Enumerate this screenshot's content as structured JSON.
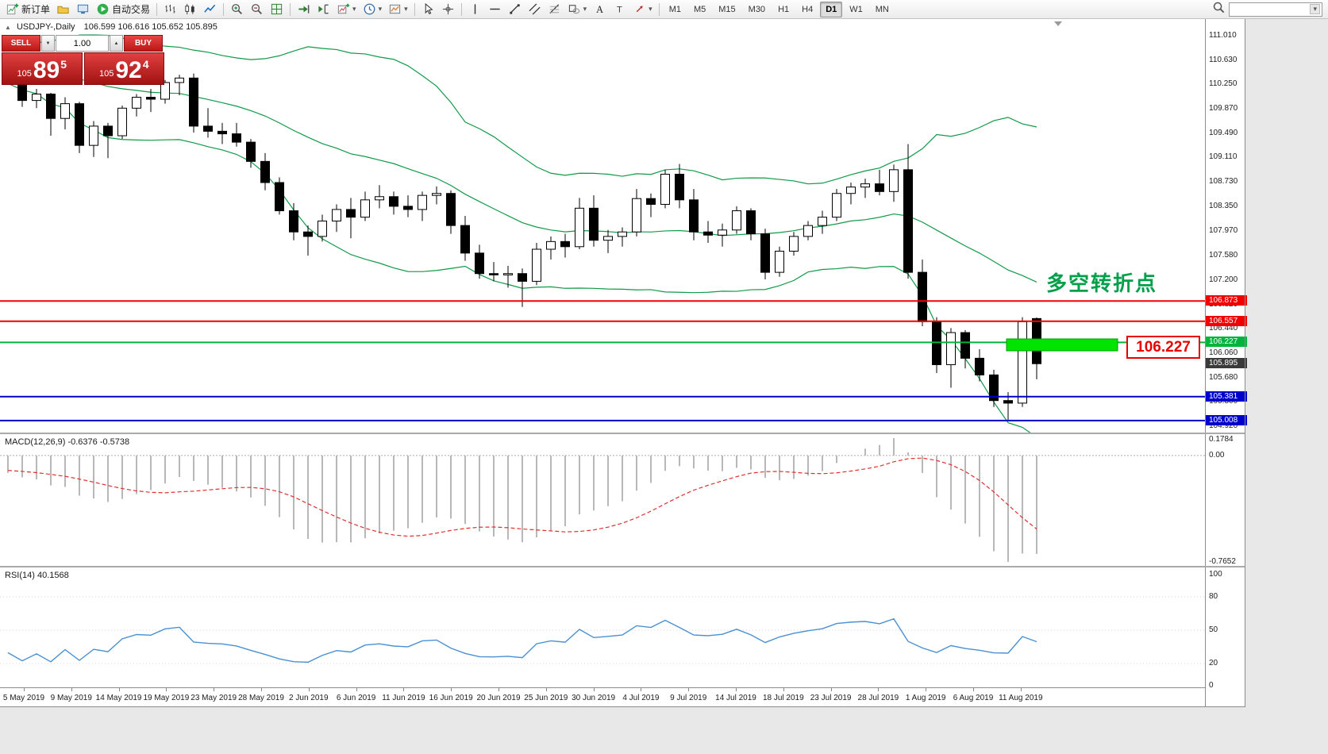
{
  "toolbar": {
    "items": [
      {
        "type": "button",
        "name": "new-order",
        "icon": "new-order-icon",
        "label": "新订单"
      },
      {
        "type": "button",
        "name": "profiles",
        "icon": "profile-icon"
      },
      {
        "type": "button",
        "name": "market-watch",
        "icon": "monitor-icon"
      },
      {
        "type": "button",
        "name": "auto-trading",
        "icon": "play-icon",
        "label": "自动交易"
      },
      {
        "type": "separator"
      },
      {
        "type": "button",
        "name": "bar-chart-mode",
        "icon": "bar-chart-icon"
      },
      {
        "type": "button",
        "name": "candlestick-mode",
        "icon": "candlestick-icon"
      },
      {
        "type": "button",
        "name": "line-chart-mode",
        "icon": "line-chart-icon"
      },
      {
        "type": "separator"
      },
      {
        "type": "button",
        "name": "zoom-in",
        "icon": "zoom-in-icon"
      },
      {
        "type": "button",
        "name": "zoom-out",
        "icon": "zoom-out-icon"
      },
      {
        "type": "button",
        "name": "tile-windows",
        "icon": "tile-icon"
      },
      {
        "type": "separator"
      },
      {
        "type": "button",
        "name": "auto-scroll",
        "icon": "auto-scroll-icon"
      },
      {
        "type": "button",
        "name": "chart-shift",
        "icon": "chart-shift-icon"
      },
      {
        "type": "button",
        "name": "new-chart",
        "icon": "new-chart-icon",
        "caret": true
      },
      {
        "type": "button",
        "name": "periods",
        "icon": "clock-icon",
        "caret": true
      },
      {
        "type": "button",
        "name": "templates",
        "icon": "template-icon",
        "caret": true
      },
      {
        "type": "separator"
      },
      {
        "type": "button",
        "name": "cursor-tool",
        "icon": "cursor-icon"
      },
      {
        "type": "button",
        "name": "crosshair-tool",
        "icon": "crosshair-icon"
      },
      {
        "type": "separator"
      },
      {
        "type": "button",
        "name": "vertical-line-tool",
        "icon": "vline-icon"
      },
      {
        "type": "button",
        "name": "horizontal-line-tool",
        "icon": "hline-icon"
      },
      {
        "type": "button",
        "name": "trendline-tool",
        "icon": "trendline-icon"
      },
      {
        "type": "button",
        "name": "channel-tool",
        "icon": "channel-icon"
      },
      {
        "type": "button",
        "name": "fibonacci-tool",
        "icon": "fibo-icon"
      },
      {
        "type": "button",
        "name": "shapes-tool",
        "icon": "shapes-icon",
        "caret": true
      },
      {
        "type": "button",
        "name": "text-tool",
        "icon": "text-icon"
      },
      {
        "type": "button",
        "name": "label-tool",
        "icon": "label-icon"
      },
      {
        "type": "button",
        "name": "arrows-tool",
        "icon": "arrow-icon",
        "caret": true
      },
      {
        "type": "separator"
      },
      {
        "type": "timeframe",
        "name": "tf-m1",
        "label": "M1"
      },
      {
        "type": "timeframe",
        "name": "tf-m5",
        "label": "M5"
      },
      {
        "type": "timeframe",
        "name": "tf-m15",
        "label": "M15"
      },
      {
        "type": "timeframe",
        "name": "tf-m30",
        "label": "M30"
      },
      {
        "type": "timeframe",
        "name": "tf-h1",
        "label": "H1"
      },
      {
        "type": "timeframe",
        "name": "tf-h4",
        "label": "H4"
      },
      {
        "type": "timeframe",
        "name": "tf-d1",
        "label": "D1",
        "active": true
      },
      {
        "type": "timeframe",
        "name": "tf-w1",
        "label": "W1"
      },
      {
        "type": "timeframe",
        "name": "tf-mn",
        "label": "MN"
      }
    ]
  },
  "glyphs": {
    "caret_down": "▾",
    "volume_down": "▼",
    "volume_up": "▲",
    "one_click_toggle": "▲"
  },
  "chart": {
    "symbol_label": "USDJPY-,Daily",
    "ohlc_text": "106.599 106.616 105.652 105.895",
    "annotation": "多空转折点",
    "callout_label": "106.227",
    "axis_labels": [
      "111.010",
      "110.630",
      "110.250",
      "109.870",
      "109.490",
      "109.110",
      "108.730",
      "108.350",
      "107.970",
      "107.580",
      "107.200",
      "106.820",
      "106.440",
      "106.060",
      "105.680",
      "105.300",
      "104.920"
    ],
    "hlines": [
      {
        "price": 106.873,
        "label": "106.873",
        "color": "#f00000"
      },
      {
        "price": 106.557,
        "label": "106.557",
        "color": "#f00000"
      },
      {
        "price": 106.227,
        "label": "106.227",
        "color": "#00b43c"
      },
      {
        "price": 105.381,
        "label": "105.381",
        "color": "#0000cc"
      },
      {
        "price": 105.008,
        "label": "105.008",
        "color": "#0000cc"
      }
    ],
    "bid_tag": {
      "price": 105.895,
      "label": "105.895",
      "color": "#3a3a3a"
    },
    "dates": [
      "5 May 2019",
      "9 May 2019",
      "14 May 2019",
      "19 May 2019",
      "23 May 2019",
      "28 May 2019",
      "2 Jun 2019",
      "6 Jun 2019",
      "11 Jun 2019",
      "16 Jun 2019",
      "20 Jun 2019",
      "25 Jun 2019",
      "30 Jun 2019",
      "4 Jul 2019",
      "9 Jul 2019",
      "14 Jul 2019",
      "18 Jul 2019",
      "23 Jul 2019",
      "28 Jul 2019",
      "1 Aug 2019",
      "6 Aug 2019",
      "11 Aug 2019"
    ]
  },
  "trade_panel": {
    "sell_label": "SELL",
    "buy_label": "BUY",
    "volume": "1.00",
    "sell_price": {
      "small": "105",
      "big": "89",
      "sup": "5"
    },
    "buy_price": {
      "small": "105",
      "big": "92",
      "sup": "4"
    }
  },
  "macd_panel": {
    "label": "MACD(12,26,9) -0.6376 -0.5738",
    "axis": {
      "max": "0.1784",
      "zero": "0.00",
      "min": "-0.7652"
    }
  },
  "rsi_panel": {
    "label": "RSI(14) 40.1568",
    "axis": [
      "100",
      "80",
      "50",
      "20",
      "0"
    ],
    "levels": [
      80,
      50,
      20
    ]
  },
  "chart_data": {
    "type": "candlestick",
    "symbol": "USDJPY",
    "timeframe": "Daily",
    "last_candle_ohlc": {
      "open": 106.599,
      "high": 106.616,
      "low": 105.652,
      "close": 105.895
    },
    "price_axis": {
      "min": 104.92,
      "max": 111.01,
      "step": 0.38
    },
    "horizontal_levels": [
      106.873,
      106.557,
      106.227,
      105.381,
      105.008
    ],
    "indicators": [
      "Bollinger Bands(20,2)",
      "MACD(12,26,9)",
      "RSI(14)"
    ],
    "macd_display": {
      "main": -0.6376,
      "signal": -0.5738,
      "range_max": 0.1784,
      "range_min": -0.7652
    },
    "rsi_display": 40.1568,
    "pre_closes": [
      110.85,
      110.9,
      110.82,
      110.75,
      110.8,
      110.72,
      110.65,
      110.7,
      110.6,
      110.55,
      110.6,
      110.52,
      110.48,
      110.55,
      110.45,
      110.5,
      110.42,
      110.46,
      110.38,
      110.44
    ],
    "candles": [
      [
        110.42,
        110.55,
        110.25,
        110.3
      ],
      [
        110.3,
        110.42,
        109.9,
        110.0
      ],
      [
        110.0,
        110.18,
        109.88,
        110.1
      ],
      [
        110.1,
        110.12,
        109.45,
        109.72
      ],
      [
        109.72,
        110.05,
        109.55,
        109.95
      ],
      [
        109.95,
        109.98,
        109.18,
        109.3
      ],
      [
        109.3,
        109.68,
        109.12,
        109.6
      ],
      [
        109.6,
        109.65,
        109.1,
        109.45
      ],
      [
        109.45,
        109.92,
        109.4,
        109.88
      ],
      [
        109.88,
        110.1,
        109.75,
        110.05
      ],
      [
        110.05,
        110.18,
        109.82,
        110.02
      ],
      [
        110.02,
        110.32,
        109.95,
        110.28
      ],
      [
        110.28,
        110.4,
        110.08,
        110.35
      ],
      [
        110.35,
        110.42,
        109.5,
        109.6
      ],
      [
        109.6,
        109.88,
        109.42,
        109.52
      ],
      [
        109.52,
        109.65,
        109.32,
        109.48
      ],
      [
        109.48,
        109.65,
        109.28,
        109.35
      ],
      [
        109.35,
        109.4,
        108.95,
        109.05
      ],
      [
        109.05,
        109.18,
        108.6,
        108.72
      ],
      [
        108.72,
        108.8,
        108.22,
        108.28
      ],
      [
        108.28,
        108.4,
        107.82,
        107.95
      ],
      [
        107.95,
        108.05,
        107.58,
        107.88
      ],
      [
        107.88,
        108.22,
        107.8,
        108.12
      ],
      [
        108.12,
        108.38,
        107.95,
        108.3
      ],
      [
        108.3,
        108.48,
        107.85,
        108.18
      ],
      [
        108.18,
        108.58,
        108.12,
        108.45
      ],
      [
        108.45,
        108.68,
        108.32,
        108.5
      ],
      [
        108.5,
        108.58,
        108.22,
        108.35
      ],
      [
        108.35,
        108.52,
        108.18,
        108.3
      ],
      [
        108.3,
        108.58,
        108.12,
        108.52
      ],
      [
        108.52,
        108.66,
        108.38,
        108.55
      ],
      [
        108.55,
        108.6,
        107.92,
        108.05
      ],
      [
        108.05,
        108.2,
        107.5,
        107.62
      ],
      [
        107.62,
        107.75,
        107.22,
        107.3
      ],
      [
        107.3,
        107.48,
        107.18,
        107.28
      ],
      [
        107.28,
        107.42,
        107.08,
        107.3
      ],
      [
        107.3,
        107.38,
        106.78,
        107.18
      ],
      [
        107.18,
        107.78,
        107.12,
        107.68
      ],
      [
        107.68,
        107.88,
        107.52,
        107.8
      ],
      [
        107.8,
        107.92,
        107.55,
        107.72
      ],
      [
        107.72,
        108.48,
        107.68,
        108.32
      ],
      [
        108.32,
        108.52,
        107.72,
        107.82
      ],
      [
        107.82,
        107.98,
        107.62,
        107.88
      ],
      [
        107.88,
        108.02,
        107.72,
        107.95
      ],
      [
        107.95,
        108.62,
        107.88,
        108.47
      ],
      [
        108.47,
        108.55,
        108.18,
        108.38
      ],
      [
        108.38,
        108.92,
        108.32,
        108.85
      ],
      [
        108.85,
        109.01,
        108.32,
        108.45
      ],
      [
        108.45,
        108.62,
        107.82,
        107.95
      ],
      [
        107.95,
        108.12,
        107.78,
        107.9
      ],
      [
        107.9,
        108.08,
        107.72,
        107.98
      ],
      [
        107.98,
        108.35,
        107.92,
        108.28
      ],
      [
        108.28,
        108.32,
        107.82,
        107.92
      ],
      [
        107.92,
        108.0,
        107.21,
        107.32
      ],
      [
        107.32,
        107.72,
        107.25,
        107.65
      ],
      [
        107.65,
        107.95,
        107.58,
        107.88
      ],
      [
        107.88,
        108.12,
        107.82,
        108.05
      ],
      [
        108.05,
        108.28,
        107.92,
        108.18
      ],
      [
        108.18,
        108.62,
        108.12,
        108.55
      ],
      [
        108.55,
        108.72,
        108.38,
        108.65
      ],
      [
        108.65,
        108.78,
        108.48,
        108.7
      ],
      [
        108.7,
        108.92,
        108.52,
        108.58
      ],
      [
        108.58,
        109.0,
        108.42,
        108.92
      ],
      [
        108.92,
        109.32,
        107.22,
        107.32
      ],
      [
        107.32,
        107.52,
        106.48,
        106.55
      ],
      [
        106.55,
        106.62,
        105.75,
        105.88
      ],
      [
        105.88,
        106.45,
        105.52,
        106.38
      ],
      [
        106.38,
        106.42,
        105.82,
        105.98
      ],
      [
        105.98,
        106.12,
        105.62,
        105.72
      ],
      [
        105.72,
        105.8,
        105.22,
        105.32
      ],
      [
        105.32,
        105.45,
        105.02,
        105.28
      ],
      [
        105.28,
        106.62,
        105.22,
        106.55
      ],
      [
        106.599,
        106.616,
        105.652,
        105.895
      ]
    ]
  }
}
